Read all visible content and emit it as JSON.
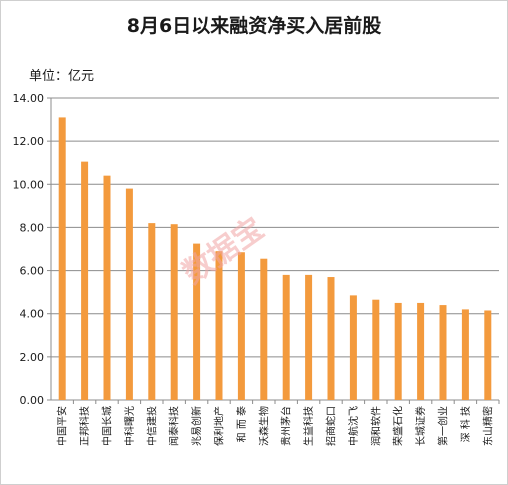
{
  "chart_data": {
    "type": "bar",
    "title": "8月6日以来融资净买入居前股",
    "unit_label": "单位：亿元",
    "categories": [
      "中国平安",
      "正邦科技",
      "中国长城",
      "中科曙光",
      "中信建投",
      "闻泰科技",
      "兆易创新",
      "保利地产",
      "和 而 泰",
      "沃森生物",
      "贵州茅台",
      "生益科技",
      "招商蛇口",
      "中航沈飞",
      "润和软件",
      "荣盛石化",
      "长城证券",
      "第一创业",
      "深 科 技",
      "东山精密"
    ],
    "values": [
      13.1,
      11.05,
      10.4,
      9.8,
      8.2,
      8.15,
      7.25,
      6.9,
      6.85,
      6.55,
      5.8,
      5.8,
      5.7,
      4.85,
      4.65,
      4.5,
      4.5,
      4.4,
      4.2,
      4.15
    ],
    "ylim": [
      0,
      14
    ],
    "y_ticks": [
      "0.00",
      "2.00",
      "4.00",
      "6.00",
      "8.00",
      "10.00",
      "12.00",
      "14.00"
    ],
    "grid": true,
    "bar_color": "#f39a3d",
    "watermark": "数据宝"
  }
}
